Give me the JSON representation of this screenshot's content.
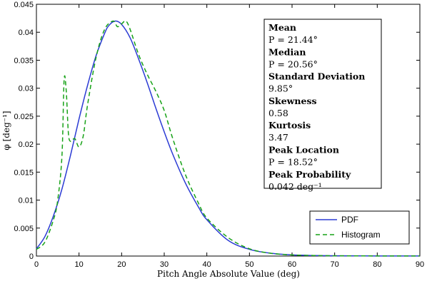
{
  "chart_data": {
    "type": "line",
    "xlabel": "Pitch Angle Absolute Value (deg)",
    "ylabel": "φ [deg⁻¹]",
    "xlim": [
      0,
      90
    ],
    "ylim": [
      0,
      0.045
    ],
    "x_ticks": [
      "0",
      "10",
      "20",
      "30",
      "40",
      "50",
      "60",
      "70",
      "80",
      "90"
    ],
    "y_ticks": [
      "0",
      "0.005",
      "0.01",
      "0.015",
      "0.02",
      "0.025",
      "0.03",
      "0.035",
      "0.04",
      "0.045"
    ],
    "legend_position": "bottom-right",
    "series": [
      {
        "name": "PDF",
        "color": "#2b3bd4",
        "dash": "solid",
        "x": [
          0,
          2,
          4,
          6,
          8,
          10,
          12,
          14,
          16,
          17,
          18.5,
          20,
          22,
          24,
          26,
          28,
          30,
          32,
          35,
          38,
          40,
          45,
          50,
          55,
          60,
          65,
          70,
          80,
          90
        ],
        "y": [
          0.0013,
          0.0035,
          0.0072,
          0.012,
          0.018,
          0.0245,
          0.0305,
          0.0358,
          0.0398,
          0.0412,
          0.042,
          0.0414,
          0.039,
          0.0352,
          0.031,
          0.0265,
          0.0222,
          0.0182,
          0.013,
          0.0088,
          0.0065,
          0.0028,
          0.0012,
          0.0005,
          0.0002,
          0.0001,
          5e-05,
          2e-05,
          1e-05
        ]
      },
      {
        "name": "Histogram",
        "color": "#17a217",
        "dash": "dashed",
        "x": [
          0,
          2,
          4,
          5,
          6,
          6.5,
          7,
          7.5,
          8,
          9,
          10,
          11,
          12,
          14,
          16,
          18,
          19,
          20,
          21,
          22,
          24,
          26,
          28,
          30,
          32,
          35,
          38,
          40,
          45,
          50,
          55,
          60,
          65,
          70,
          80,
          90
        ],
        "y": [
          0.0012,
          0.0025,
          0.0065,
          0.01,
          0.018,
          0.0315,
          0.0295,
          0.022,
          0.0205,
          0.021,
          0.0195,
          0.0215,
          0.027,
          0.0355,
          0.0405,
          0.042,
          0.041,
          0.0415,
          0.042,
          0.0405,
          0.036,
          0.0325,
          0.0295,
          0.026,
          0.021,
          0.0145,
          0.0095,
          0.0068,
          0.0033,
          0.0013,
          0.0005,
          0.0002,
          0.0001,
          5e-05,
          2e-05,
          1e-05
        ]
      }
    ],
    "stats": [
      {
        "heading": "Mean",
        "value": "P = 21.44°"
      },
      {
        "heading": "Median",
        "value": "P = 20.56°"
      },
      {
        "heading": "Standard Deviation",
        "value": "9.85°"
      },
      {
        "heading": "Skewness",
        "value": "0.58"
      },
      {
        "heading": "Kurtosis",
        "value": "3.47"
      },
      {
        "heading": "Peak Location",
        "value": "P = 18.52°"
      },
      {
        "heading": "Peak Probability",
        "value": "0.042 deg⁻¹"
      }
    ]
  }
}
